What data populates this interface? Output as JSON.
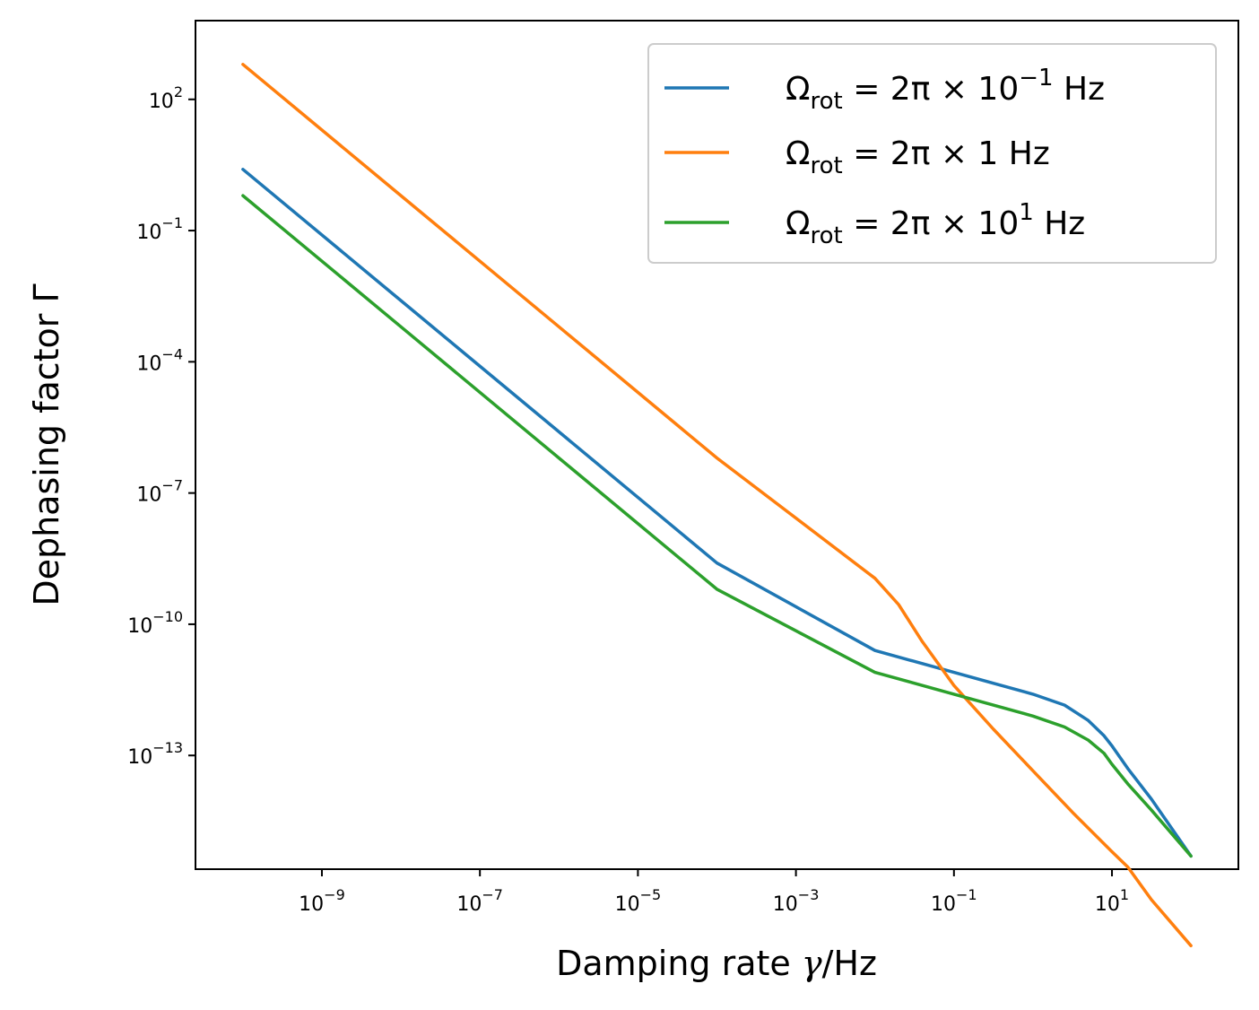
{
  "chart_data": {
    "type": "line",
    "title": "",
    "xlabel": {
      "text": "Damping rate ",
      "symbol": "γ",
      "unit": "/Hz"
    },
    "ylabel": "Dephasing factor Γ",
    "xscale": "log",
    "yscale": "log",
    "xlim_exp": [
      -10.6,
      2.6
    ],
    "ylim_exp": [
      -15.6,
      3.8
    ],
    "grid": false,
    "legend_position": "top-right",
    "x_ticks": [
      {
        "exp": -9,
        "base": "10",
        "sup": "−9"
      },
      {
        "exp": -7,
        "base": "10",
        "sup": "−7"
      },
      {
        "exp": -5,
        "base": "10",
        "sup": "−5"
      },
      {
        "exp": -3,
        "base": "10",
        "sup": "−3"
      },
      {
        "exp": -1,
        "base": "10",
        "sup": "−1"
      },
      {
        "exp": 1,
        "base": "10",
        "sup": "1"
      }
    ],
    "y_ticks": [
      {
        "exp": 2,
        "base": "10",
        "sup": "2"
      },
      {
        "exp": -1,
        "base": "10",
        "sup": "−1"
      },
      {
        "exp": -4,
        "base": "10",
        "sup": "−4"
      },
      {
        "exp": -7,
        "base": "10",
        "sup": "−7"
      },
      {
        "exp": -10,
        "base": "10",
        "sup": "−10"
      },
      {
        "exp": -13,
        "base": "10",
        "sup": "−13"
      }
    ],
    "series": [
      {
        "name": "Ω_rot = 2π × 10^-1 Hz",
        "legend": {
          "omega": "Ω",
          "sub": "rot",
          "mid": " = 2π × 10",
          "sup": "−1",
          "tail": " Hz"
        },
        "color": "#1f77b4",
        "log10_x": [
          -10,
          -8,
          -6,
          -4,
          -2,
          -1,
          0,
          0.4,
          0.7,
          0.9,
          1.0,
          1.2,
          1.5,
          2.0
        ],
        "log10_y": [
          0.4,
          -2.6,
          -5.6,
          -8.6,
          -10.6,
          -11.1,
          -11.6,
          -11.85,
          -12.2,
          -12.55,
          -12.78,
          -13.3,
          -14.0,
          -15.3
        ]
      },
      {
        "name": "Ω_rot = 2π × 1 Hz",
        "legend": {
          "omega": "Ω",
          "sub": "rot",
          "mid": " = 2π × 1",
          "sup": "",
          "tail": " Hz"
        },
        "color": "#ff7f0e",
        "log10_x": [
          -10,
          -8,
          -6,
          -4,
          -2,
          -1.7,
          -1.4,
          -1,
          -0.5,
          0,
          0.5,
          1.0,
          1.2,
          1.5,
          2.0
        ],
        "log10_y": [
          2.8,
          -0.2,
          -3.2,
          -6.2,
          -8.95,
          -9.55,
          -10.4,
          -11.4,
          -12.4,
          -13.35,
          -14.3,
          -15.2,
          -15.55,
          -16.3,
          -17.35
        ]
      },
      {
        "name": "Ω_rot = 2π × 10^1 Hz",
        "legend": {
          "omega": "Ω",
          "sub": "rot",
          "mid": " = 2π × 10",
          "sup": "1",
          "tail": " Hz"
        },
        "color": "#2ca02c",
        "log10_x": [
          -10,
          -8,
          -6,
          -4,
          -2,
          -1,
          0,
          0.4,
          0.7,
          0.9,
          1.0,
          1.2,
          1.5,
          2.0
        ],
        "log10_y": [
          -0.2,
          -3.2,
          -6.2,
          -9.2,
          -11.1,
          -11.6,
          -12.1,
          -12.35,
          -12.65,
          -12.95,
          -13.2,
          -13.65,
          -14.25,
          -15.3
        ]
      }
    ]
  }
}
